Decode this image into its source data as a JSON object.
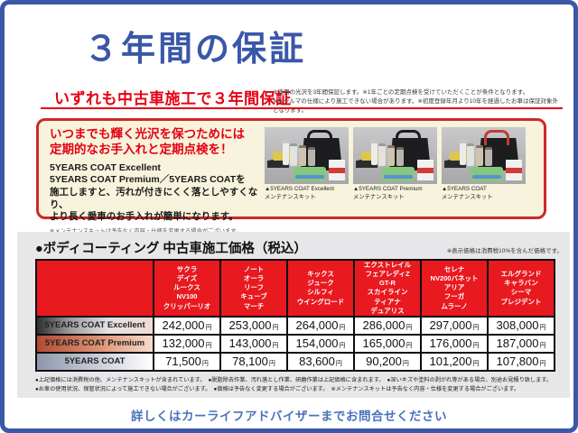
{
  "page": {
    "title": "３年間の保証",
    "subtitle": "いずれも中古車施工で３年間保証",
    "subtitle_notes": [
      "※塗面の光沢を3年間保証します。※1年ごとの定期点検を受けていただくことが条件となります。",
      "※おクルマの仕様により施工できない場合があります。※初度登録年月より10年を経過したお車は保証対象外となります。"
    ],
    "footer": "詳しくはカーライフアドバイザーまでお問合せください"
  },
  "colors": {
    "brand_blue": "#3a57a8",
    "brand_red": "#e60012",
    "table_header_red": "#e8191f",
    "info_box_bg": "#f7f3dc",
    "section_bg": "#e7e7e9"
  },
  "info_box": {
    "heading_lines": [
      "いつまでも輝く光沢を保つためには",
      "定期的なお手入れと定期点検を！"
    ],
    "body_lines": [
      "5YEARS COAT Excellent",
      "5YEARS COAT Premium／5YEARS COATを",
      "施工しますと、汚れが付きにくく落としやすくなり、",
      "より長く愛車のお手入れが簡単になります。"
    ],
    "note": "※メンテナンスキットは予告なく内容・仕様を変更する場合がございます。",
    "photos": [
      {
        "caption_line1": "▲5YEARS COAT Excellent",
        "caption_line2": "メンテナンスキット"
      },
      {
        "caption_line1": "▲5YEARS COAT Premium",
        "caption_line2": "メンテナンスキット"
      },
      {
        "caption_line1": "▲5YEARS COAT",
        "caption_line2": "メンテナンスキット"
      }
    ]
  },
  "price_section": {
    "title": "●ボディコーティング 中古車施工価格（税込）",
    "tax_note": "※表示価格は消費税10%を含んだ価格です。",
    "unit": "円",
    "columns": [
      {
        "models": [
          "サクラ",
          "デイズ",
          "ルークス",
          "NV100",
          "クリッパーリオ"
        ]
      },
      {
        "models": [
          "ノート",
          "オーラ",
          "リーフ",
          "キューブ",
          "マーチ"
        ]
      },
      {
        "models": [
          "キックス",
          "ジューク",
          "シルフィ",
          "ウイングロード"
        ]
      },
      {
        "models": [
          "エクストレイル",
          "フェアレディZ",
          "GT-R",
          "スカイライン",
          "ティアナ",
          "デュアリス"
        ]
      },
      {
        "models": [
          "セレナ",
          "NV200バネット",
          "アリア",
          "フーガ",
          "ムラーノ"
        ]
      },
      {
        "models": [
          "エルグランド",
          "キャラバン",
          "シーマ",
          "プレジデント"
        ]
      }
    ],
    "rows": [
      {
        "label": "5YEARS COAT Excellent",
        "prices": [
          "242,000",
          "253,000",
          "264,000",
          "286,000",
          "297,000",
          "308,000"
        ]
      },
      {
        "label": "5YEARS COAT Premium",
        "prices": [
          "132,000",
          "143,000",
          "154,000",
          "165,000",
          "176,000",
          "187,000"
        ]
      },
      {
        "label": "5YEARS COAT",
        "prices": [
          "71,500",
          "78,100",
          "83,600",
          "90,200",
          "101,200",
          "107,800"
        ]
      }
    ],
    "footnote": "●上記価格には消費税の他、メンテナンスキットが含まれています。　●脱脂除去作業、汚れ落とし作業、研磨作業は上記価格に含まれます。　●深いキズや塗料の剥がれ等がある場合、別途お見積り致します。　●お車の使用状況、保管状況によって施工できない場合がございます。　●価格は予告なく変更する場合がございます。　※メンテナンスキットは予告なく内容・仕様を変更する場合がございます。"
  }
}
